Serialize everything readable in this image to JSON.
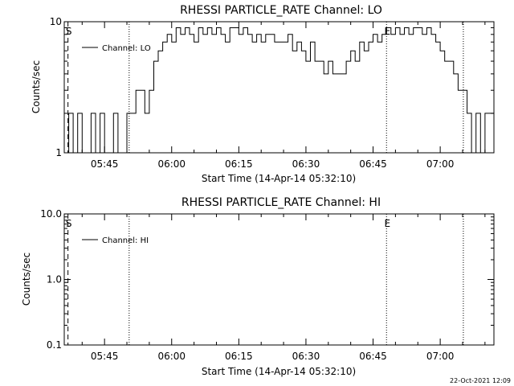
{
  "footer": {
    "date_stamp": "22-Oct-2021 12:09"
  },
  "colors": {
    "background": "#ffffff",
    "ink": "#000000"
  },
  "chart_data": [
    {
      "type": "line",
      "title": "RHESSI PARTICLE_RATE Channel: LO",
      "xlabel": "Start Time (14-Apr-14 05:32:10)",
      "ylabel": "Counts/sec",
      "yscale": "log",
      "ylim": [
        1,
        10
      ],
      "yticks": [
        {
          "value": 1,
          "label": "1"
        },
        {
          "value": 10,
          "label": "10"
        }
      ],
      "xlim": [
        "05:36",
        "07:12"
      ],
      "xticks": [
        "05:45",
        "06:00",
        "06:15",
        "06:30",
        "06:45",
        "07:00"
      ],
      "legend": {
        "placement": "top-left",
        "entries": [
          "Channel: LO"
        ]
      },
      "markers": [
        {
          "time": "05:36:50",
          "style": "dashed",
          "label": "S"
        },
        {
          "time": "05:50:30",
          "style": "dotted",
          "label": ""
        },
        {
          "time": "06:48:00",
          "style": "dotted",
          "label": "E"
        },
        {
          "time": "07:05:10",
          "style": "dotted",
          "label": ""
        }
      ],
      "series": [
        {
          "name": "Channel: LO",
          "step": "1 min",
          "start": "05:36",
          "values": [
            1,
            2,
            1,
            2,
            1,
            1,
            2,
            1,
            2,
            1,
            1,
            2,
            1,
            1,
            2,
            2,
            3,
            3,
            2,
            3,
            5,
            6,
            7,
            8,
            7,
            9,
            8,
            9,
            8,
            7,
            9,
            8,
            9,
            8,
            9,
            8,
            7,
            9,
            9,
            8,
            9,
            8,
            7,
            8,
            7,
            8,
            8,
            7,
            7,
            7,
            8,
            6,
            7,
            6,
            5,
            7,
            5,
            5,
            4,
            5,
            4,
            4,
            4,
            5,
            6,
            5,
            7,
            6,
            7,
            8,
            7,
            8,
            9,
            8,
            9,
            8,
            9,
            8,
            9,
            9,
            8,
            9,
            8,
            7,
            6,
            5,
            5,
            4,
            3,
            3,
            2,
            1,
            2,
            1,
            2,
            2,
            1,
            2,
            1,
            1
          ]
        }
      ]
    },
    {
      "type": "line",
      "title": "RHESSI PARTICLE_RATE Channel: HI",
      "xlabel": "Start Time (14-Apr-14 05:32:10)",
      "ylabel": "Counts/sec",
      "yscale": "log",
      "ylim": [
        0.1,
        10
      ],
      "yticks": [
        {
          "value": 0.1,
          "label": "0.1"
        },
        {
          "value": 1,
          "label": "1.0"
        },
        {
          "value": 10,
          "label": "10.0"
        }
      ],
      "xlim": [
        "05:36",
        "07:12"
      ],
      "xticks": [
        "05:45",
        "06:00",
        "06:15",
        "06:30",
        "06:45",
        "07:00"
      ],
      "legend": {
        "placement": "top-left",
        "entries": [
          "Channel: HI"
        ]
      },
      "markers": [
        {
          "time": "05:36:50",
          "style": "dashed",
          "label": "S"
        },
        {
          "time": "05:50:30",
          "style": "dotted",
          "label": ""
        },
        {
          "time": "06:48:00",
          "style": "dotted",
          "label": "E"
        },
        {
          "time": "07:05:10",
          "style": "dotted",
          "label": ""
        }
      ],
      "series": [
        {
          "name": "Channel: HI",
          "values": []
        }
      ]
    }
  ]
}
